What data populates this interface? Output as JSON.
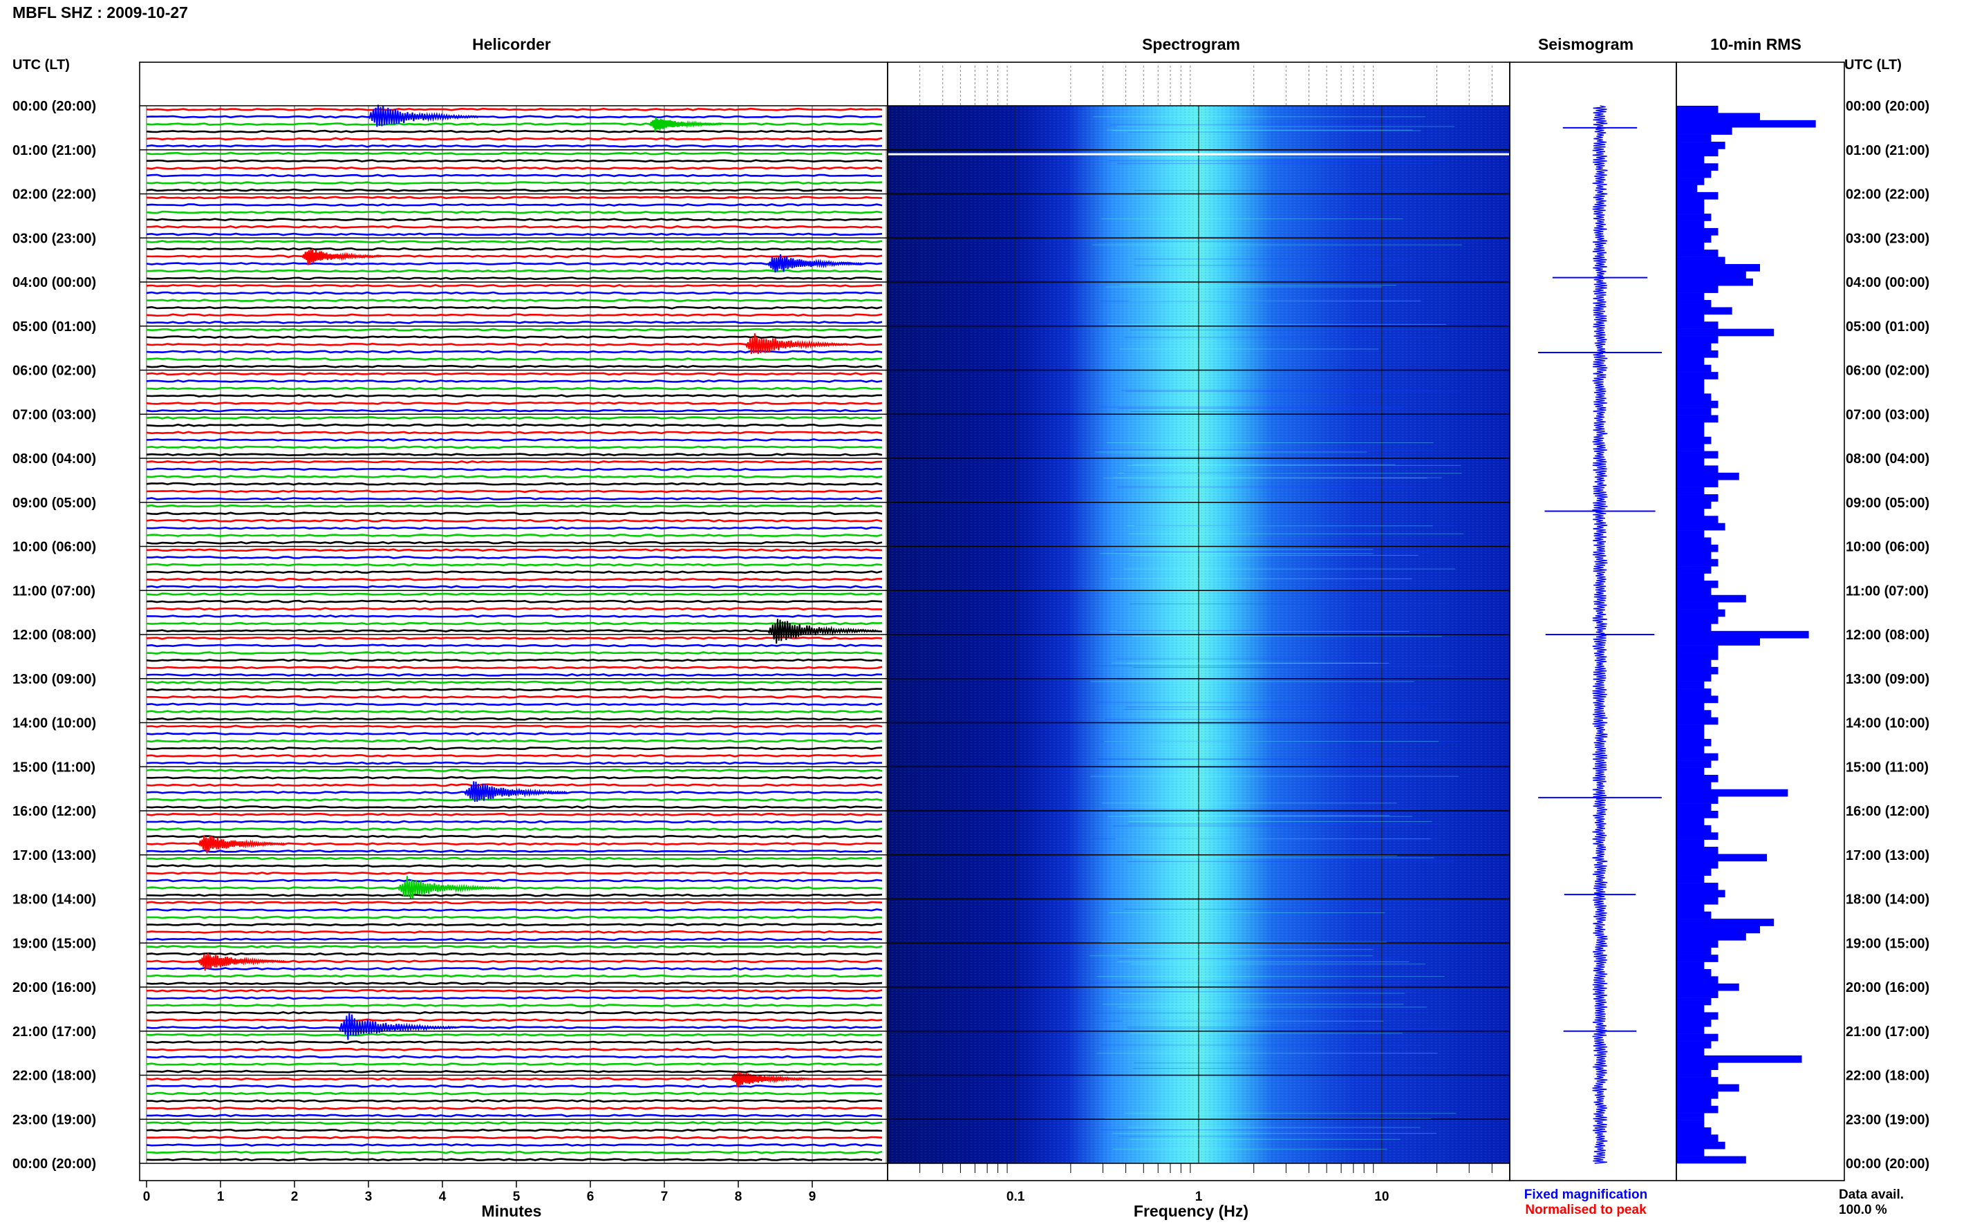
{
  "header": {
    "station_title": "MBFL SHZ : 2009-10-27",
    "utc_label_left": "UTC (LT)",
    "utc_label_right": "UTC (LT)"
  },
  "panels": {
    "helicorder": "Helicorder",
    "spectrogram": "Spectrogram",
    "seismogram": "Seismogram",
    "rms": "10-min RMS"
  },
  "axes": {
    "helicorder_xlabel": "Minutes",
    "spectrogram_xlabel": "Frequency (Hz)",
    "minute_ticks": [
      "0",
      "1",
      "2",
      "3",
      "4",
      "5",
      "6",
      "7",
      "8",
      "9"
    ],
    "freq_ticks": [
      "0.1",
      "1",
      "10"
    ]
  },
  "time_labels": [
    "00:00 (20:00)",
    "01:00 (21:00)",
    "02:00 (22:00)",
    "03:00 (23:00)",
    "04:00 (00:00)",
    "05:00 (01:00)",
    "06:00 (02:00)",
    "07:00 (03:00)",
    "08:00 (04:00)",
    "09:00 (05:00)",
    "10:00 (06:00)",
    "11:00 (07:00)",
    "12:00 (08:00)",
    "13:00 (09:00)",
    "14:00 (10:00)",
    "15:00 (11:00)",
    "16:00 (12:00)",
    "17:00 (13:00)",
    "18:00 (14:00)",
    "19:00 (15:00)",
    "20:00 (16:00)",
    "21:00 (17:00)",
    "22:00 (18:00)",
    "23:00 (19:00)",
    "00:00 (20:00)"
  ],
  "legend": {
    "fixed": "Fixed magnification",
    "normalised": "Normalised to peak",
    "fixed_color": "#0000ff",
    "normalised_color": "#ff0000"
  },
  "data_avail": {
    "label": "Data avail.",
    "value": "100.0 %"
  },
  "colors": {
    "trace_cycle": [
      "#ff0000",
      "#0000ff",
      "#00cc00",
      "#000000"
    ],
    "spec_low": "#00008b",
    "spec_high": "#40ffff",
    "rms_bar": "#0000ff"
  },
  "chart_data": [
    {
      "type": "line",
      "title": "Helicorder",
      "xlabel": "Minutes",
      "xlim": [
        0,
        10
      ],
      "rows_per_hour": 6,
      "hours": 24,
      "row_minutes": 10,
      "events": [
        {
          "hour": 0.1,
          "minute": 3.0,
          "amp": 0.9
        },
        {
          "hour": 0.35,
          "minute": 6.8,
          "amp": 0.4
        },
        {
          "hour": 3.5,
          "minute": 8.4,
          "amp": 0.7
        },
        {
          "hour": 3.3,
          "minute": 2.1,
          "amp": 0.5
        },
        {
          "hour": 5.3,
          "minute": 8.1,
          "amp": 0.8
        },
        {
          "hour": 11.8,
          "minute": 8.4,
          "amp": 0.9
        },
        {
          "hour": 15.5,
          "minute": 4.3,
          "amp": 0.8
        },
        {
          "hour": 16.6,
          "minute": 0.7,
          "amp": 0.6
        },
        {
          "hour": 17.6,
          "minute": 3.4,
          "amp": 0.8
        },
        {
          "hour": 19.3,
          "minute": 0.7,
          "amp": 0.6
        },
        {
          "hour": 20.9,
          "minute": 2.6,
          "amp": 1.0
        },
        {
          "hour": 22.0,
          "minute": 7.9,
          "amp": 0.5
        }
      ]
    },
    {
      "type": "heatmap",
      "title": "Spectrogram",
      "xlabel": "Frequency (Hz)",
      "xscale": "log",
      "xlim": [
        0.02,
        50
      ],
      "peak_band_hz": [
        0.3,
        3
      ]
    },
    {
      "type": "line",
      "title": "Seismogram",
      "spikes_at_hour": [
        0.5,
        3.9,
        5.6,
        9.2,
        12.0,
        15.7,
        17.9,
        21.0
      ]
    },
    {
      "type": "bar",
      "title": "10-min RMS",
      "values_rel": [
        0.3,
        0.6,
        1.0,
        0.4,
        0.25,
        0.35,
        0.3,
        0.2,
        0.3,
        0.25,
        0.2,
        0.15,
        0.3,
        0.2,
        0.2,
        0.25,
        0.2,
        0.3,
        0.25,
        0.2,
        0.3,
        0.35,
        0.6,
        0.5,
        0.55,
        0.3,
        0.2,
        0.25,
        0.4,
        0.2,
        0.3,
        0.7,
        0.3,
        0.25,
        0.3,
        0.2,
        0.25,
        0.3,
        0.2,
        0.2,
        0.25,
        0.3,
        0.25,
        0.3,
        0.2,
        0.2,
        0.25,
        0.2,
        0.3,
        0.2,
        0.3,
        0.45,
        0.3,
        0.2,
        0.3,
        0.25,
        0.2,
        0.3,
        0.35,
        0.2,
        0.25,
        0.3,
        0.25,
        0.3,
        0.25,
        0.2,
        0.3,
        0.25,
        0.5,
        0.3,
        0.35,
        0.3,
        0.25,
        0.95,
        0.6,
        0.3,
        0.3,
        0.25,
        0.3,
        0.25,
        0.2,
        0.25,
        0.3,
        0.2,
        0.25,
        0.3,
        0.2,
        0.2,
        0.25,
        0.2,
        0.3,
        0.25,
        0.2,
        0.3,
        0.25,
        0.8,
        0.3,
        0.25,
        0.3,
        0.2,
        0.25,
        0.3,
        0.2,
        0.3,
        0.65,
        0.3,
        0.25,
        0.2,
        0.3,
        0.35,
        0.3,
        0.2,
        0.25,
        0.7,
        0.6,
        0.5,
        0.3,
        0.25,
        0.3,
        0.2,
        0.25,
        0.3,
        0.45,
        0.3,
        0.25,
        0.2,
        0.3,
        0.25,
        0.2,
        0.3,
        0.25,
        0.2,
        0.9,
        0.3,
        0.25,
        0.3,
        0.45,
        0.3,
        0.25,
        0.3,
        0.2,
        0.2,
        0.25,
        0.3,
        0.35,
        0.2,
        0.5
      ]
    }
  ]
}
